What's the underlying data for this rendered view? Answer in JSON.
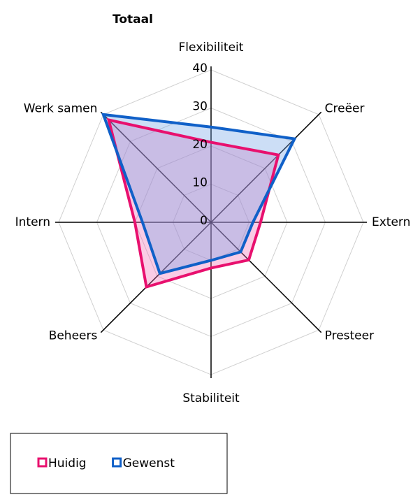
{
  "chart_data": {
    "type": "radar",
    "title": "Totaal",
    "categories": [
      "Flexibiliteit",
      "Creëer",
      "Extern",
      "Presteer",
      "Stabiliteit",
      "Beheers",
      "Intern",
      "Werk samen"
    ],
    "series": [
      {
        "name": "Huidig",
        "color": "#e8106e",
        "fill": "rgba(240,110,180,0.35)",
        "values": [
          21,
          25,
          13,
          14,
          12,
          24,
          20,
          38
        ]
      },
      {
        "name": "Gewenst",
        "color": "#1060c8",
        "fill": "rgba(110,160,230,0.35)",
        "values": [
          25,
          31,
          11,
          11,
          10,
          19,
          18,
          40
        ]
      }
    ],
    "rlim": [
      0,
      40
    ],
    "rticks": [
      0,
      10,
      20,
      30,
      40
    ],
    "grid": true
  }
}
